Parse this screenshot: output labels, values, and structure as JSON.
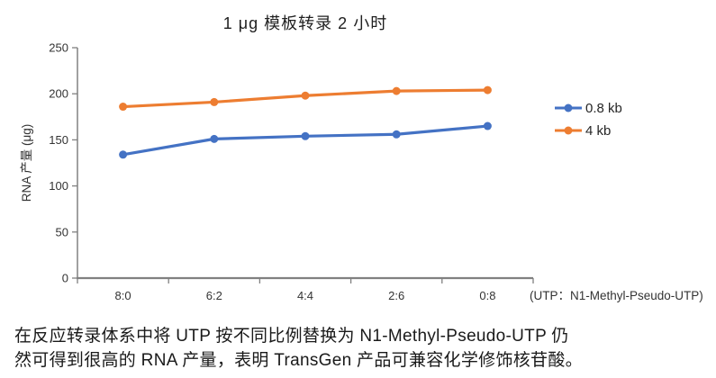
{
  "title": "1 μg 模板转录 2 小时",
  "caption": {
    "line1": "在反应转录体系中将 UTP 按不同比例替换为 N1-Methyl-Pseudo-UTP 仍",
    "line2": "然可得到很高的 RNA 产量，表明 TransGen 产品可兼容化学修饰核苷酸。"
  },
  "chart_data": {
    "type": "line",
    "title": "1 μg 模板转录 2 小时",
    "categories": [
      "8:0",
      "6:2",
      "4:4",
      "2:6",
      "0:8"
    ],
    "series": [
      {
        "name": "0.8 kb",
        "color": "#4472C4",
        "values": [
          134,
          151,
          154,
          156,
          165
        ]
      },
      {
        "name": "4 kb",
        "color": "#ED7D31",
        "values": [
          186,
          191,
          198,
          203,
          204
        ]
      }
    ],
    "xlabel": "(UTP：N1-Methyl-Pseudo-UTP)",
    "ylabel": "RNA 产量 (μg)",
    "ylim": [
      0,
      250
    ],
    "ytick_step": 50,
    "yticks": [
      0,
      50,
      100,
      150,
      200,
      250
    ],
    "grid": false,
    "legend_position": "right",
    "axis_color": "#808080",
    "tick_label_color": "#333333"
  }
}
